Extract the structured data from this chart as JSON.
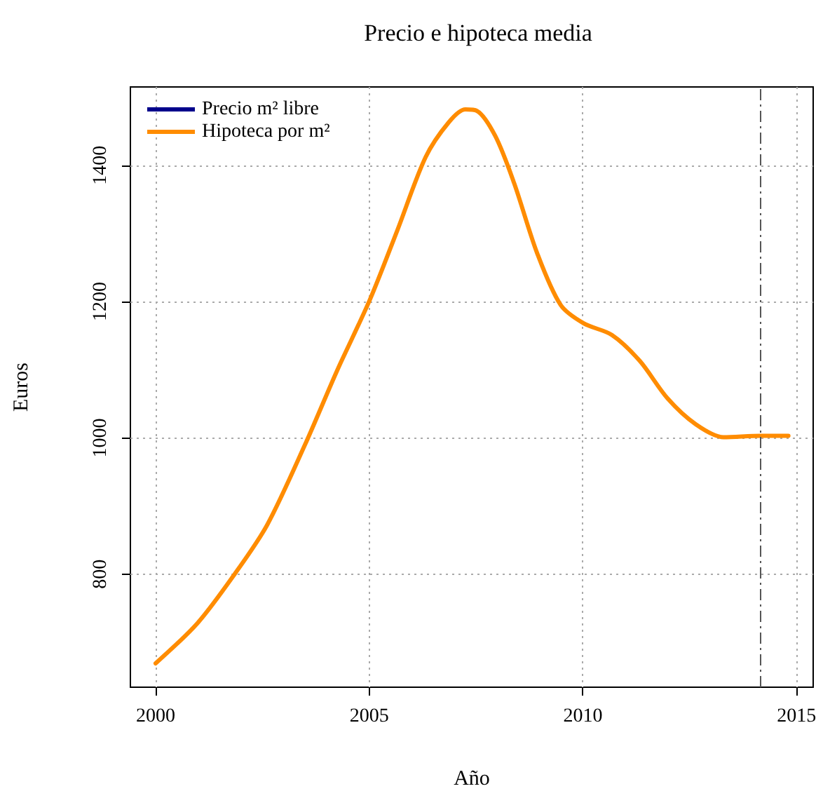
{
  "chart_data": {
    "type": "line",
    "title": "Precio e hipoteca media",
    "xlabel": "Año",
    "ylabel": "Euros",
    "x": [
      2000,
      2000.98,
      2001.85,
      2002.61,
      2003.49,
      2004.25,
      2005.01,
      2005.66,
      2006.32,
      2006.86,
      2007.25,
      2007.52,
      2007.95,
      2008.39,
      2008.93,
      2009.48,
      2010.02,
      2010.68,
      2011.33,
      2011.98,
      2012.64,
      2013.29,
      2014.16,
      2014.81
    ],
    "series": [
      {
        "name": "Precio m² libre",
        "color": "#00008b",
        "values": [
          null,
          null,
          null,
          null,
          null,
          null,
          null,
          null,
          null,
          null,
          null,
          null,
          null,
          null,
          null,
          null,
          null,
          null,
          null,
          null,
          null,
          null,
          null,
          null
        ]
      },
      {
        "name": "Hipoteca por m²",
        "color": "#ff8c00",
        "values": [
          669,
          728,
          800,
          872,
          989,
          1099,
          1202,
          1305,
          1412,
          1463,
          1482,
          1480,
          1443,
          1374,
          1271,
          1195,
          1168,
          1151,
          1113,
          1058,
          1020,
          1001,
          1003,
          1003
        ]
      }
    ],
    "xlim": [
      1999.41,
      2015.39
    ],
    "xticks": [
      2000,
      2005,
      2010,
      2015
    ],
    "ylim": [
      634,
      1515
    ],
    "yticks": [
      800,
      1000,
      1200,
      1400
    ],
    "ref_lines": [
      {
        "axis": "x",
        "value": 2014.16,
        "color": "#555555",
        "line_style": "dashed"
      }
    ],
    "grid": true,
    "legend": "top left",
    "marker": "none",
    "line_style": "solid"
  }
}
